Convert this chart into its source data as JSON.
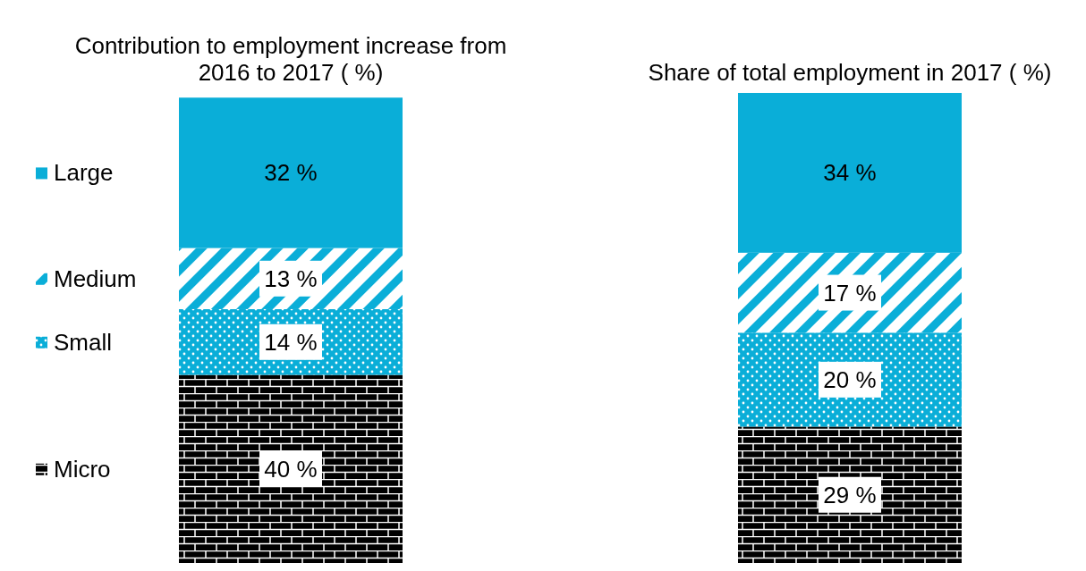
{
  "chart_data": {
    "type": "bar",
    "stacked": true,
    "categories": [
      "Contribution to employment increase from 2016 to 2017 ( %)",
      "Share of total employment in 2017 ( %)"
    ],
    "series": [
      {
        "name": "Micro",
        "color": "#000000",
        "values": [
          40,
          29
        ],
        "value_labels": [
          "40 %",
          "29 %"
        ]
      },
      {
        "name": "Small",
        "color": "#0aaed8",
        "values": [
          14,
          20
        ],
        "value_labels": [
          "14 %",
          "20 %"
        ]
      },
      {
        "name": "Medium",
        "color": "#0aaed8",
        "values": [
          13,
          17
        ],
        "value_labels": [
          "13 %",
          "17 %"
        ]
      },
      {
        "name": "Large",
        "color": "#0aaed8",
        "values": [
          32,
          34
        ],
        "value_labels": [
          "32 %",
          "34 %"
        ]
      }
    ],
    "legend": "left"
  }
}
